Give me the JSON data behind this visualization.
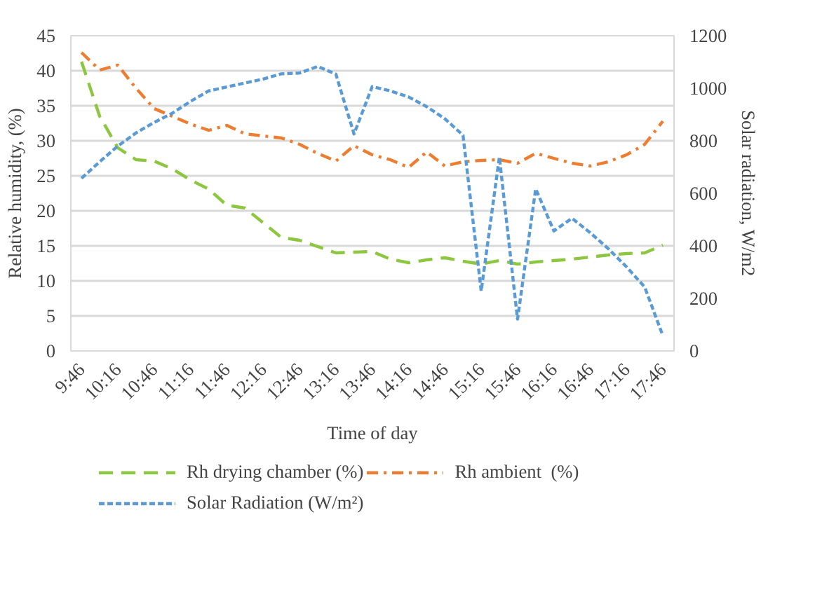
{
  "chart_data": {
    "type": "line",
    "xlabel": "Time of day",
    "ylabel": "Relative humidity, (%)",
    "y2label": "Solar radiation, W/m2",
    "x": [
      9.7667,
      10.0167,
      10.2667,
      10.5167,
      10.7667,
      11.0167,
      11.2667,
      11.5167,
      11.7667,
      12.0167,
      12.2667,
      12.5167,
      12.7667,
      13.0167,
      13.2667,
      13.5167,
      13.7667,
      14.0167,
      14.2667,
      14.5167,
      14.7667,
      15.0167,
      15.2667,
      15.5167,
      15.7667,
      16.0167,
      16.2667,
      16.5167,
      16.7667,
      17.0167,
      17.2667,
      17.5167,
      17.7667
    ],
    "xlim": [
      9.62,
      17.92
    ],
    "xticks": [
      {
        "value": 9.7667,
        "label": "9:46"
      },
      {
        "value": 10.2667,
        "label": "10:16"
      },
      {
        "value": 10.7667,
        "label": "10:46"
      },
      {
        "value": 11.2667,
        "label": "11:16"
      },
      {
        "value": 11.7667,
        "label": "11:46"
      },
      {
        "value": 12.2667,
        "label": "12:16"
      },
      {
        "value": 12.7667,
        "label": "12:46"
      },
      {
        "value": 13.2667,
        "label": "13:16"
      },
      {
        "value": 13.7667,
        "label": "13:46"
      },
      {
        "value": 14.2667,
        "label": "14:16"
      },
      {
        "value": 14.7667,
        "label": "14:46"
      },
      {
        "value": 15.2667,
        "label": "15:16"
      },
      {
        "value": 15.7667,
        "label": "15:46"
      },
      {
        "value": 16.2667,
        "label": "16:16"
      },
      {
        "value": 16.7667,
        "label": "16:46"
      },
      {
        "value": 17.2667,
        "label": "17:16"
      },
      {
        "value": 17.7667,
        "label": "17:46"
      }
    ],
    "ylim": [
      0,
      45
    ],
    "yticks": [
      0,
      5,
      10,
      15,
      20,
      25,
      30,
      35,
      40,
      45
    ],
    "y2lim": [
      0,
      1200
    ],
    "y2ticks": [
      0,
      200,
      400,
      600,
      800,
      1000,
      1200
    ],
    "grid": "y",
    "legend": "bottom",
    "marker": "none",
    "series": [
      {
        "name": "Rh drying chamber (%)",
        "color": "#8dc63f",
        "line_style": "dashed",
        "values": [
          41.3,
          33.5,
          29,
          27.3,
          27.1,
          26,
          24.4,
          23.1,
          20.8,
          20.4,
          18.3,
          16.2,
          15.8,
          14.9,
          14.0,
          14.1,
          14.2,
          13.1,
          12.6,
          13.0,
          13.3,
          12.8,
          12.4,
          12.9,
          12.4,
          12.7,
          12.9,
          13.1,
          13.4,
          13.7,
          13.9,
          14.0,
          15.1
        ]
      },
      {
        "name": "Rh ambient  (%)",
        "color": "#ed7d31",
        "line_style": "dashdot",
        "values": [
          42.6,
          40.1,
          40.8,
          37.5,
          34.6,
          33.5,
          32.4,
          31.5,
          32.2,
          31.0,
          30.7,
          30.4,
          29.5,
          28.2,
          27.1,
          29.3,
          28.0,
          27.3,
          26.2,
          28.4,
          26.4,
          27.0,
          27.2,
          27.3,
          26.8,
          28.2,
          27.5,
          26.8,
          26.4,
          27.0,
          28.0,
          29.5,
          32.8
        ]
      },
      {
        "name": "Solar Radiation (W/m²)",
        "color": "#5b9bd5",
        "line_style": "dotted",
        "axis": "y2",
        "values": [
          657,
          720,
          780,
          830,
          870,
          905,
          950,
          990,
          1005,
          1020,
          1035,
          1055,
          1058,
          1083,
          1054,
          826,
          1006,
          990,
          967,
          930,
          884,
          821,
          228,
          738,
          121,
          617,
          457,
          505,
          450,
          389,
          320,
          243,
          58
        ]
      }
    ]
  }
}
